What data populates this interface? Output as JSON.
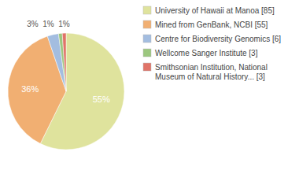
{
  "chart_data": {
    "type": "pie",
    "categories": [
      "University of Hawaii at Manoa [85]",
      "Mined from GenBank, NCBI [55]",
      "Centre for Biodiversity Genomics [6]",
      "Wellcome Sanger Institute [3]",
      "Smithsonian Institution, National Museum of Natural History... [3]"
    ],
    "values": [
      55,
      36,
      3,
      1,
      1
    ],
    "value_labels": [
      "55%",
      "36%",
      "3%",
      "1%",
      "1%"
    ],
    "colors": [
      "#dfe39d",
      "#f1af72",
      "#a3bde0",
      "#9cc77f",
      "#e07468"
    ],
    "data_labels": true
  }
}
